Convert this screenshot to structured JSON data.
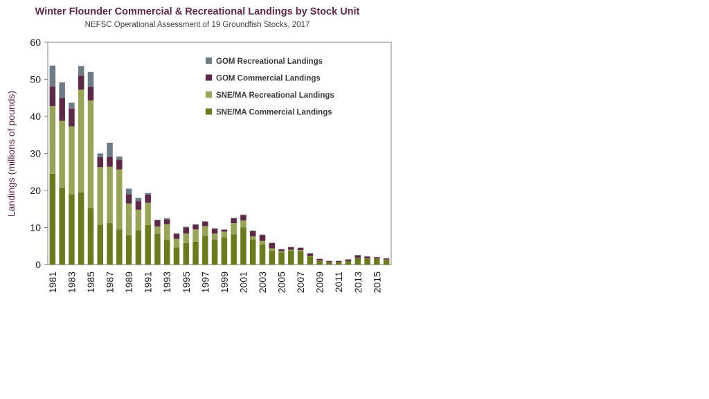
{
  "chart_data": {
    "type": "bar",
    "stacked": true,
    "title": "Winter Flounder Commercial & Recreational Landings by Stock Unit",
    "subtitle": "NEFSC Operational Assessment of 19 Groundfish Stocks, 2017",
    "xlabel": "",
    "ylabel": "Landings (millions of pounds)",
    "ylim": [
      0,
      60
    ],
    "yticks": [
      0,
      10,
      20,
      30,
      40,
      50,
      60
    ],
    "legend_position": "top-right",
    "categories": [
      "1981",
      "1982",
      "1983",
      "1984",
      "1985",
      "1986",
      "1987",
      "1988",
      "1989",
      "1990",
      "1991",
      "1992",
      "1993",
      "1994",
      "1995",
      "1996",
      "1997",
      "1998",
      "1999",
      "2000",
      "2001",
      "2002",
      "2003",
      "2004",
      "2005",
      "2006",
      "2007",
      "2008",
      "2009",
      "2010",
      "2011",
      "2012",
      "2013",
      "2014",
      "2015",
      "2016"
    ],
    "x_tick_labels": [
      "1981",
      "1983",
      "1985",
      "1987",
      "1989",
      "1991",
      "1993",
      "1995",
      "1997",
      "1999",
      "2001",
      "2003",
      "2005",
      "2007",
      "2009",
      "2011",
      "2013",
      "2015"
    ],
    "series": [
      {
        "name": "SNE/MA Commercial Landings",
        "color": "#6b7a1f",
        "values": [
          24.5,
          20.8,
          19.0,
          19.5,
          15.3,
          10.8,
          11.2,
          9.5,
          8.0,
          9.3,
          10.7,
          8.3,
          6.7,
          4.6,
          5.8,
          6.2,
          7.8,
          6.8,
          7.3,
          8.2,
          10.0,
          6.8,
          5.4,
          3.8,
          3.3,
          3.8,
          3.7,
          2.2,
          1.0,
          0.7,
          0.7,
          0.9,
          1.7,
          1.6,
          1.5,
          1.3
        ]
      },
      {
        "name": "SNE/MA Recreational Landings",
        "color": "#9aa35a",
        "values": [
          18.3,
          18.0,
          18.3,
          27.7,
          29.0,
          15.5,
          15.2,
          16.2,
          8.5,
          5.5,
          6.0,
          2.0,
          4.2,
          2.4,
          2.6,
          3.3,
          2.6,
          1.6,
          1.6,
          3.0,
          1.9,
          0.8,
          1.0,
          0.6,
          0.3,
          0.2,
          0.2,
          0.1,
          0.1,
          0.0,
          0.0,
          0.0,
          0.1,
          0.1,
          0.1,
          0.1
        ]
      },
      {
        "name": "GOM Commercial Landings",
        "color": "#5a2a47",
        "values": [
          5.3,
          6.2,
          4.8,
          3.8,
          3.7,
          2.7,
          2.7,
          2.6,
          2.5,
          2.3,
          2.2,
          1.7,
          1.3,
          1.3,
          1.6,
          1.3,
          1.2,
          1.3,
          0.5,
          1.3,
          1.5,
          1.5,
          1.6,
          1.4,
          0.5,
          0.7,
          0.6,
          0.7,
          0.4,
          0.3,
          0.3,
          0.5,
          0.7,
          0.5,
          0.4,
          0.3
        ]
      },
      {
        "name": "GOM Recreational Landings",
        "color": "#6e7b87",
        "values": [
          5.6,
          4.2,
          1.6,
          2.6,
          4.0,
          1.0,
          3.8,
          0.9,
          1.5,
          0.9,
          0.4,
          0.1,
          0.3,
          0.1,
          0.2,
          0.1,
          0.1,
          0.1,
          0.1,
          0.1,
          0.1,
          0.1,
          0.1,
          0.1,
          0.1,
          0.1,
          0.1,
          0.1,
          0.1,
          0.0,
          0.0,
          0.0,
          0.1,
          0.0,
          0.0,
          0.0
        ]
      }
    ]
  }
}
